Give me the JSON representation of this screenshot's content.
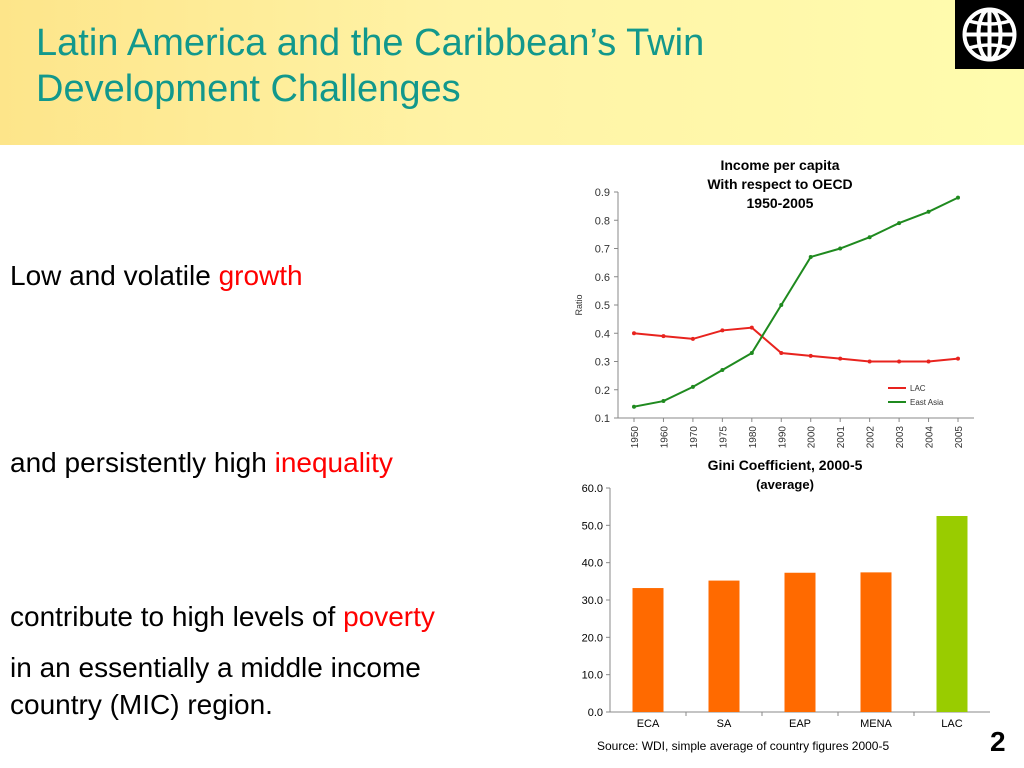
{
  "slide": {
    "title_line1": "Latin America and the Caribbean’s Twin",
    "title_line2": "Development Challenges",
    "logo_icon": "world-bank-globe-icon",
    "page_number": "2"
  },
  "body": {
    "line1_text": "Low and volatile ",
    "line1_highlight": "growth",
    "line2_text": "and persistently high ",
    "line2_highlight": "inequality",
    "line3_text": "contribute to high levels of ",
    "line3_highlight": "poverty",
    "line4": "in an essentially a middle income",
    "line5": "country (MIC) region.",
    "highlight_color": "#ff0000"
  },
  "chart_data": [
    {
      "type": "line",
      "title": "Income per capita",
      "subtitle_line1": "With respect to OECD",
      "subtitle_line2": "1950-2005",
      "ylabel": "Ratio",
      "categories": [
        "1950",
        "1960",
        "1970",
        "1975",
        "1980",
        "1990",
        "2000",
        "2001",
        "2002",
        "2003",
        "2004",
        "2005"
      ],
      "ylim": [
        0.1,
        0.9
      ],
      "yticks": [
        "0.1",
        "0.2",
        "0.3",
        "0.4",
        "0.5",
        "0.6",
        "0.7",
        "0.8",
        "0.9"
      ],
      "grid": false,
      "legend_position": "bottom-right",
      "series": [
        {
          "name": "LAC",
          "color": "#e8231e",
          "values": [
            0.4,
            0.39,
            0.38,
            0.41,
            0.42,
            0.33,
            0.32,
            0.31,
            0.3,
            0.3,
            0.3,
            0.31
          ]
        },
        {
          "name": "East Asia",
          "color": "#1f8a1f",
          "values": [
            0.14,
            0.16,
            0.21,
            0.27,
            0.33,
            0.5,
            0.67,
            0.7,
            0.74,
            0.79,
            0.83,
            0.88
          ]
        }
      ]
    },
    {
      "type": "bar",
      "title": "Gini Coefficient, 2000-5",
      "subtitle": "(average)",
      "categories": [
        "ECA",
        "SA",
        "EAP",
        "MENA",
        "LAC"
      ],
      "values": [
        33.2,
        35.2,
        37.3,
        37.4,
        52.5
      ],
      "colors": [
        "#ff6a00",
        "#ff6a00",
        "#ff6a00",
        "#ff6a00",
        "#99cc00"
      ],
      "ylim": [
        0,
        60
      ],
      "yticks": [
        "0.0",
        "10.0",
        "20.0",
        "30.0",
        "40.0",
        "50.0",
        "60.0"
      ],
      "source": "Source: WDI, simple average of country figures 2000-5"
    }
  ]
}
